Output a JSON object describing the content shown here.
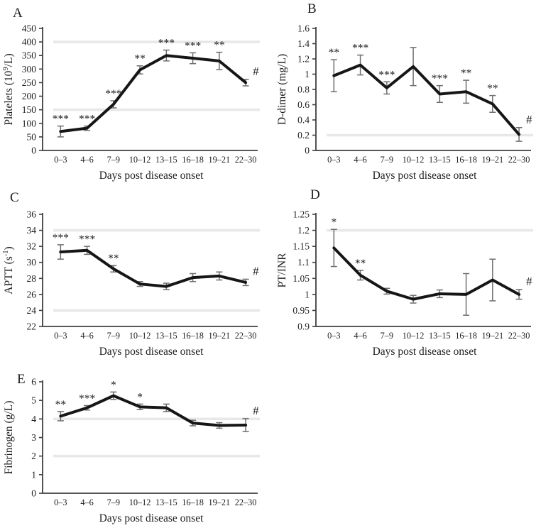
{
  "style": {
    "line_color": "#161616",
    "error_bar_color": "#6e6e6e",
    "reference_line_color": "#e8e8e8",
    "axis_color": "#3f3f3f",
    "text_color": "#1f1f1f"
  },
  "chart_data": [
    {
      "type": "line",
      "panel": "A",
      "ylabel": "Platelets (10^{9}/L)",
      "xlabel": "Days post disease onset",
      "categories": [
        "0–3",
        "4–6",
        "7–9",
        "10–12",
        "13–15",
        "16–18",
        "19–21",
        "22–30"
      ],
      "values": [
        70,
        82,
        170,
        297,
        350,
        340,
        330,
        250
      ],
      "errors": [
        20,
        8,
        13,
        15,
        20,
        20,
        32,
        12
      ],
      "sig": [
        "***",
        "***",
        "***",
        "**",
        "***",
        "***",
        "**",
        "#"
      ],
      "ylim": [
        0,
        450
      ],
      "yticks": [
        "0",
        "50",
        "100",
        "150",
        "200",
        "250",
        "300",
        "350",
        "400",
        "450"
      ],
      "ref_lines": [
        400,
        150
      ],
      "grid": false,
      "legend": false
    },
    {
      "type": "line",
      "panel": "B",
      "ylabel": "D-dimer (mg/L)",
      "xlabel": "Days post disease onset",
      "categories": [
        "0–3",
        "4–6",
        "7–9",
        "10–12",
        "13–15",
        "16–18",
        "19–21",
        "22–30"
      ],
      "values": [
        0.98,
        1.12,
        0.82,
        1.1,
        0.74,
        0.77,
        0.61,
        0.21
      ],
      "errors": [
        0.21,
        0.13,
        0.08,
        0.25,
        0.11,
        0.15,
        0.11,
        0.09
      ],
      "sig": [
        "**",
        "***",
        "***",
        "",
        "***",
        "**",
        "**",
        "#"
      ],
      "ylim": [
        0,
        1.6
      ],
      "yticks": [
        "0",
        "0.2",
        "0.4",
        "0.6",
        "0.8",
        "1",
        "1.2",
        "1.4",
        "1.6"
      ],
      "ref_lines": [
        0.2
      ],
      "grid": false,
      "legend": false
    },
    {
      "type": "line",
      "panel": "C",
      "ylabel": "APTT (s^{-1})",
      "xlabel": "Days post disease onset",
      "categories": [
        "0–3",
        "4–6",
        "7–9",
        "10–12",
        "13–15",
        "16–18",
        "19–21",
        "22–30"
      ],
      "values": [
        31.3,
        31.5,
        29.2,
        27.3,
        27.0,
        28.1,
        28.3,
        27.5
      ],
      "errors": [
        0.9,
        0.5,
        0.4,
        0.3,
        0.4,
        0.5,
        0.5,
        0.4
      ],
      "sig": [
        "***",
        "***",
        "**",
        "",
        "",
        "",
        "",
        "#"
      ],
      "ylim": [
        22,
        36
      ],
      "yticks": [
        "22",
        "24",
        "26",
        "28",
        "30",
        "32",
        "34",
        "36"
      ],
      "ref_lines": [
        34,
        24
      ],
      "grid": false,
      "legend": false
    },
    {
      "type": "line",
      "panel": "D",
      "ylabel": "PT/INR",
      "xlabel": "Days post disease onset",
      "categories": [
        "0–3",
        "4–6",
        "7–9",
        "10–12",
        "13–15",
        "16–18",
        "19–21",
        "22–30"
      ],
      "values": [
        1.145,
        1.06,
        1.01,
        0.985,
        1.002,
        1.0,
        1.045,
        1.0
      ],
      "errors": [
        0.058,
        0.015,
        0.009,
        0.012,
        0.012,
        0.065,
        0.065,
        0.015
      ],
      "sig": [
        "*",
        "**",
        "",
        "",
        "",
        "",
        "",
        "#"
      ],
      "ylim": [
        0.9,
        1.25
      ],
      "yticks": [
        "0.9",
        "0.95",
        "1",
        "1.05",
        "1.1",
        "1.15",
        "1.2",
        "1.25"
      ],
      "ref_lines": [
        1.2
      ],
      "grid": false,
      "legend": false
    },
    {
      "type": "line",
      "panel": "E",
      "ylabel": "Fibrinogen (g/L)",
      "xlabel": "Days post disease onset",
      "categories": [
        "0–3",
        "4–6",
        "7–9",
        "10–12",
        "13–15",
        "16–18",
        "19–21",
        "22–30"
      ],
      "values": [
        4.15,
        4.6,
        5.25,
        4.65,
        4.6,
        3.78,
        3.65,
        3.67
      ],
      "errors": [
        0.25,
        0.12,
        0.2,
        0.15,
        0.2,
        0.15,
        0.15,
        0.35
      ],
      "sig": [
        "**",
        "***",
        "*",
        "*",
        "",
        "",
        "",
        "#"
      ],
      "ylim": [
        0,
        6
      ],
      "yticks": [
        "0",
        "1",
        "2",
        "3",
        "4",
        "5",
        "6"
      ],
      "ref_lines": [
        4,
        2
      ],
      "grid": false,
      "legend": false
    }
  ]
}
